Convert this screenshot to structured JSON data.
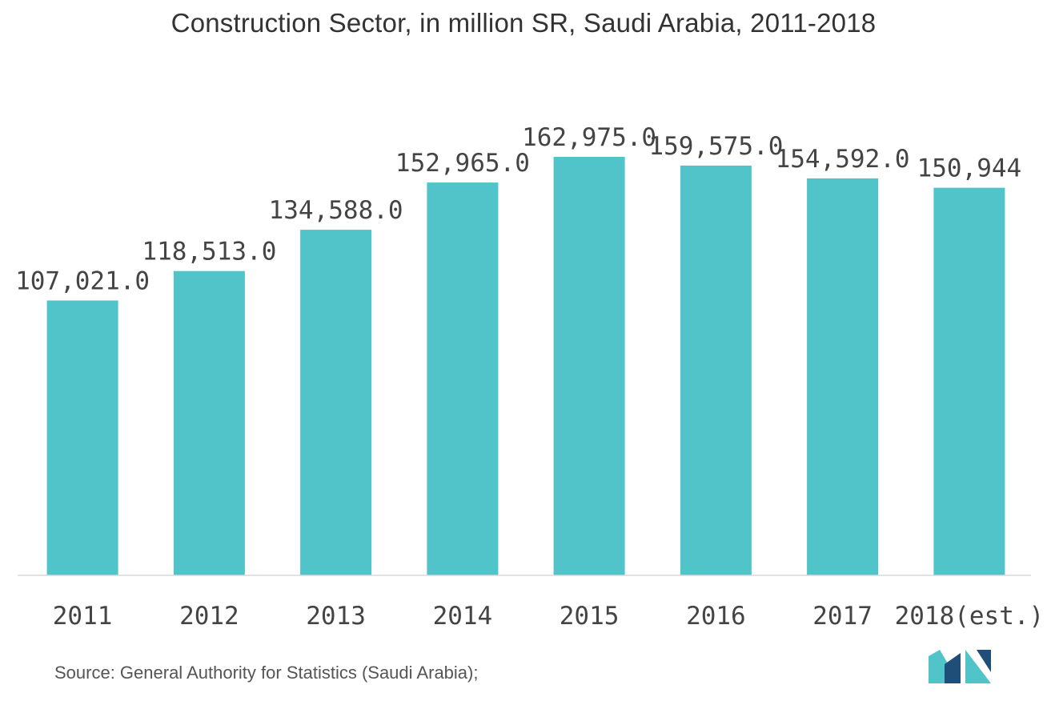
{
  "chart_data": {
    "type": "bar",
    "title": "Construction Sector, in million SR, Saudi Arabia, 2011-2018",
    "categories": [
      "2011",
      "2012",
      "2013",
      "2014",
      "2015",
      "2016",
      "2017",
      "2018(est.)"
    ],
    "values": [
      107021.0,
      118513.0,
      134588.0,
      152965.0,
      162975.0,
      159575.0,
      154592.0,
      150944
    ],
    "value_labels": [
      "107,021.0",
      "118,513.0",
      "134,588.0",
      "152,965.0",
      "162,975.0",
      "159,575.0",
      "154,592.0",
      "150,944"
    ],
    "xlabel": "",
    "ylabel": "",
    "ylim": [
      0,
      172000
    ],
    "grid": false,
    "bar_color": "#50C4C9"
  },
  "source": "Source: General Authority for Statistics (Saudi Arabia);",
  "logo": {
    "icon": "mordor-intelligence-logo-icon",
    "color_dark": "#1f4e79",
    "color_light": "#50C4C9"
  }
}
